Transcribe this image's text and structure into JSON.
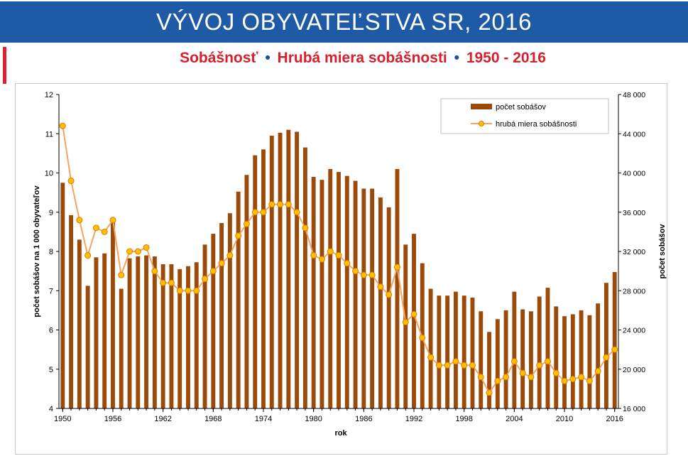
{
  "header": {
    "title": "VÝVOJ OBYVATEĽSTVA SR, 2016"
  },
  "subtitle": {
    "part1": "Sobášnosť",
    "part2": "Hrubá miera sobášnosti",
    "part3": "1950 - 2016",
    "separator": "•"
  },
  "colors": {
    "banner": "#1f5aa6",
    "accent_red": "#d6202e",
    "bar": "#9c4a0a",
    "line": "#f4a460",
    "marker_fill": "#ffc000",
    "marker_stroke": "#e07b00"
  },
  "chart_data": {
    "type": "bar+line",
    "xlabel": "rok",
    "ylabel_left": "počet sobášov na 1 000 obyvateľov",
    "ylabel_right": "počet sobášov",
    "ylim_left": [
      4,
      12
    ],
    "ylim_right": [
      16000,
      48000
    ],
    "left_ticks": [
      "4",
      "5",
      "6",
      "7",
      "8",
      "9",
      "10",
      "11",
      "12"
    ],
    "right_ticks": [
      "16 000",
      "20 000",
      "24 000",
      "28 000",
      "32 000",
      "36 000",
      "40 000",
      "44 000",
      "48 000"
    ],
    "x_ticks": [
      "1950",
      "1956",
      "1962",
      "1968",
      "1974",
      "1980",
      "1986",
      "1992",
      "1998",
      "2004",
      "2010",
      "2016"
    ],
    "legend": {
      "position": "top-right",
      "bars_label": "počet sobášov",
      "line_label": "hrubá miera sobášnosti"
    },
    "years": [
      1950,
      1951,
      1952,
      1953,
      1954,
      1955,
      1956,
      1957,
      1958,
      1959,
      1960,
      1961,
      1962,
      1963,
      1964,
      1965,
      1966,
      1967,
      1968,
      1969,
      1970,
      1971,
      1972,
      1973,
      1974,
      1975,
      1976,
      1977,
      1978,
      1979,
      1980,
      1981,
      1982,
      1983,
      1984,
      1985,
      1986,
      1987,
      1988,
      1989,
      1990,
      1991,
      1992,
      1993,
      1994,
      1995,
      1996,
      1997,
      1998,
      1999,
      2000,
      2001,
      2002,
      2003,
      2004,
      2005,
      2006,
      2007,
      2008,
      2009,
      2010,
      2011,
      2012,
      2013,
      2014,
      2015,
      2016
    ],
    "series": [
      {
        "name": "počet sobášov",
        "axis": "right",
        "values": [
          39000,
          35700,
          33200,
          28500,
          31400,
          31800,
          35200,
          28200,
          31300,
          31500,
          31600,
          31500,
          30700,
          30700,
          30200,
          30500,
          30900,
          32700,
          33800,
          34900,
          35900,
          38100,
          39800,
          41800,
          42400,
          43800,
          44100,
          44400,
          44200,
          42600,
          39600,
          39300,
          40400,
          40100,
          39700,
          39200,
          38400,
          38400,
          37500,
          36500,
          40400,
          32700,
          33800,
          30800,
          28200,
          27500,
          27500,
          27900,
          27500,
          27300,
          25900,
          23800,
          25100,
          26000,
          27900,
          26100,
          25900,
          27400,
          28300,
          26400,
          25400,
          25600,
          26000,
          25500,
          26700,
          28800,
          29900
        ]
      },
      {
        "name": "hrubá miera sobášnosti",
        "axis": "left",
        "values": [
          11.2,
          9.8,
          8.8,
          7.9,
          8.6,
          8.5,
          8.8,
          7.4,
          8.0,
          8.0,
          8.1,
          7.5,
          7.2,
          7.2,
          7.0,
          7.0,
          7.0,
          7.3,
          7.5,
          7.7,
          7.9,
          8.4,
          8.7,
          9.0,
          9.0,
          9.2,
          9.2,
          9.2,
          9.0,
          8.6,
          7.9,
          7.8,
          8.0,
          7.9,
          7.7,
          7.5,
          7.4,
          7.4,
          7.1,
          6.9,
          7.6,
          6.2,
          6.4,
          5.8,
          5.3,
          5.1,
          5.1,
          5.2,
          5.1,
          5.1,
          4.8,
          4.4,
          4.7,
          4.8,
          5.2,
          4.9,
          4.8,
          5.1,
          5.2,
          4.9,
          4.7,
          4.75,
          4.8,
          4.7,
          4.95,
          5.3,
          5.5
        ]
      }
    ]
  }
}
